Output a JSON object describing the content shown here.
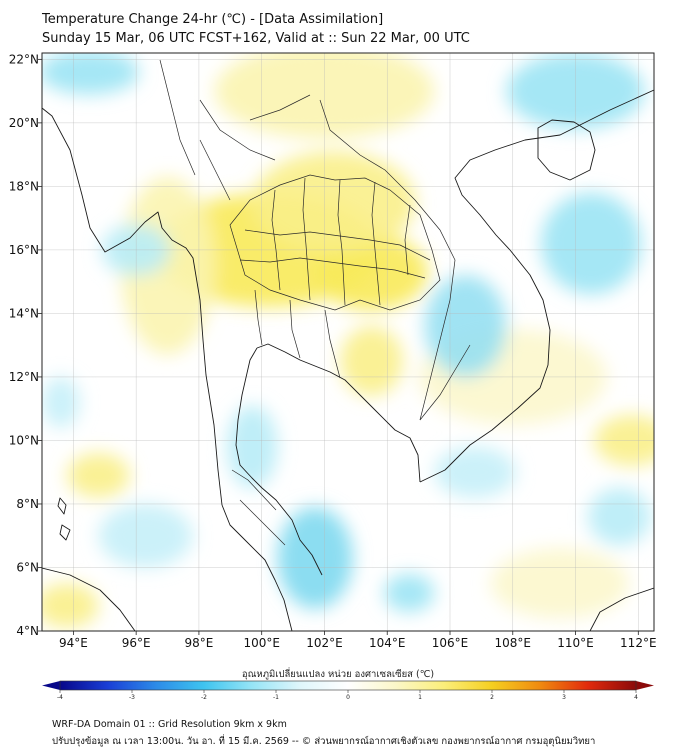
{
  "header": {
    "title_line1": "Temperature Change 24-hr (℃) - [Data Assimilation]",
    "title_line2": "Sunday 15 Mar, 06 UTC FCST+162, Valid at :: Sun 22 Mar, 00 UTC"
  },
  "map": {
    "extent": {
      "lon_min": 93,
      "lon_max": 112.5,
      "lat_min": 4,
      "lat_max": 22.2
    },
    "lon_ticks": [
      {
        "value": 94,
        "label": "94°E"
      },
      {
        "value": 96,
        "label": "96°E"
      },
      {
        "value": 98,
        "label": "98°E"
      },
      {
        "value": 100,
        "label": "100°E"
      },
      {
        "value": 102,
        "label": "102°E"
      },
      {
        "value": 104,
        "label": "104°E"
      },
      {
        "value": 106,
        "label": "106°E"
      },
      {
        "value": 108,
        "label": "108°E"
      },
      {
        "value": 110,
        "label": "110°E"
      },
      {
        "value": 112,
        "label": "112°E"
      }
    ],
    "lat_ticks": [
      {
        "value": 4,
        "label": "4°N"
      },
      {
        "value": 6,
        "label": "6°N"
      },
      {
        "value": 8,
        "label": "8°N"
      },
      {
        "value": 10,
        "label": "10°N"
      },
      {
        "value": 12,
        "label": "12°N"
      },
      {
        "value": 14,
        "label": "14°N"
      },
      {
        "value": 16,
        "label": "16°N"
      },
      {
        "value": 18,
        "label": "18°N"
      },
      {
        "value": 20,
        "label": "20°N"
      },
      {
        "value": 22,
        "label": "22°N"
      }
    ],
    "gridlines": true
  },
  "colorbar": {
    "label": "อุณหภูมิเปลี่ยนแปลง หน่วย องศาเซลเซียส (℃)",
    "min": -4,
    "max": 4,
    "ticks": [
      {
        "value": -4,
        "label": "-4"
      },
      {
        "value": -3,
        "label": "-3"
      },
      {
        "value": -2,
        "label": "-2"
      },
      {
        "value": -1,
        "label": "-1"
      },
      {
        "value": 0,
        "label": "0"
      },
      {
        "value": 1,
        "label": "1"
      },
      {
        "value": 2,
        "label": "2"
      },
      {
        "value": 3,
        "label": "3"
      },
      {
        "value": 4,
        "label": "4"
      }
    ],
    "colors": [
      "#08088a",
      "#1a3fd6",
      "#2c8be8",
      "#3fc4ef",
      "#96e4f6",
      "#dff6fb",
      "#ffffff",
      "#fbf7c8",
      "#fbee7a",
      "#f5cf20",
      "#f08a10",
      "#e12a0c",
      "#8b0a0a"
    ]
  },
  "field": {
    "warm_blobs": [
      {
        "lon": 100.2,
        "lat": 16.0,
        "rx": 3.6,
        "ry": 1.8,
        "color": "#f8ea5a"
      },
      {
        "lon": 103.5,
        "lat": 15.3,
        "rx": 1.8,
        "ry": 1.2,
        "color": "#f8ea5a"
      },
      {
        "lon": 102.3,
        "lat": 17.5,
        "rx": 2.6,
        "ry": 1.6,
        "color": "#faf08a"
      },
      {
        "lon": 103.5,
        "lat": 12.5,
        "rx": 1.0,
        "ry": 1.1,
        "color": "#faf08a"
      },
      {
        "lon": 102.0,
        "lat": 21.0,
        "rx": 3.5,
        "ry": 1.5,
        "color": "#fbf4b0"
      },
      {
        "lon": 97.0,
        "lat": 15.5,
        "rx": 1.5,
        "ry": 2.8,
        "color": "#fbf4b0"
      },
      {
        "lon": 94.8,
        "lat": 8.9,
        "rx": 1.0,
        "ry": 0.7,
        "color": "#faf08a"
      },
      {
        "lon": 93.8,
        "lat": 4.8,
        "rx": 1.0,
        "ry": 0.7,
        "color": "#faf08a"
      },
      {
        "lon": 108.0,
        "lat": 12.0,
        "rx": 3.0,
        "ry": 1.5,
        "color": "#fcf7cc"
      },
      {
        "lon": 111.8,
        "lat": 10.0,
        "rx": 1.2,
        "ry": 0.8,
        "color": "#faf08a"
      },
      {
        "lon": 109.5,
        "lat": 5.5,
        "rx": 2.2,
        "ry": 1.1,
        "color": "#fcf7cc"
      }
    ],
    "cool_blobs": [
      {
        "lon": 94.5,
        "lat": 21.6,
        "rx": 1.6,
        "ry": 0.7,
        "color": "#9be4f4"
      },
      {
        "lon": 110.0,
        "lat": 21.0,
        "rx": 2.2,
        "ry": 1.2,
        "color": "#9be4f4"
      },
      {
        "lon": 110.5,
        "lat": 16.2,
        "rx": 1.6,
        "ry": 1.6,
        "color": "#9be4f4"
      },
      {
        "lon": 106.5,
        "lat": 13.6,
        "rx": 1.3,
        "ry": 1.6,
        "color": "#96e0f2"
      },
      {
        "lon": 101.7,
        "lat": 6.3,
        "rx": 1.2,
        "ry": 1.6,
        "color": "#7fd9f0"
      },
      {
        "lon": 99.7,
        "lat": 9.8,
        "rx": 0.8,
        "ry": 1.3,
        "color": "#b8ecf7"
      },
      {
        "lon": 96.0,
        "lat": 16.0,
        "rx": 1.1,
        "ry": 0.8,
        "color": "#b8ecf7"
      },
      {
        "lon": 104.7,
        "lat": 5.2,
        "rx": 0.8,
        "ry": 0.6,
        "color": "#9be4f4"
      },
      {
        "lon": 96.3,
        "lat": 7.0,
        "rx": 1.5,
        "ry": 1.0,
        "color": "#c5eff8"
      },
      {
        "lon": 93.6,
        "lat": 11.2,
        "rx": 0.6,
        "ry": 0.8,
        "color": "#c5eff8"
      },
      {
        "lon": 106.8,
        "lat": 9.0,
        "rx": 1.3,
        "ry": 0.8,
        "color": "#c5eff8"
      },
      {
        "lon": 111.4,
        "lat": 7.6,
        "rx": 1.0,
        "ry": 0.9,
        "color": "#b8ecf7"
      }
    ]
  },
  "footer": {
    "line1": "WRF-DA Domain 01 :: Grid Resolution 9km x 9km",
    "line2": "ปรับปรุงข้อมูล ณ เวลา 13:00น. วัน อา. ที่ 15 มี.ค. 2569 -- © ส่วนพยากรณ์อากาศเชิงตัวเลข กองพยากรณ์อากาศ กรมอุตุนิยมวิทยา"
  }
}
